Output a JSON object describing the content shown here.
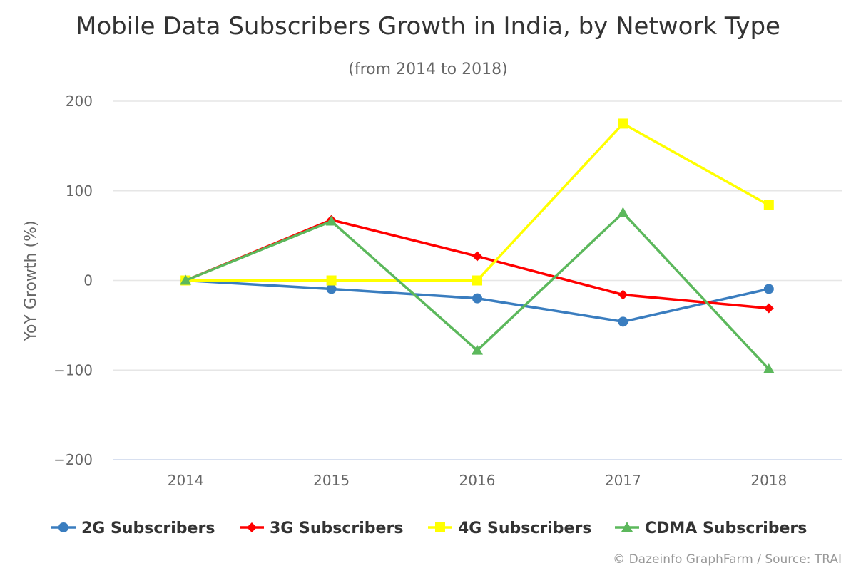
{
  "chart_data": {
    "type": "line",
    "title": "Mobile Data Subscribers Growth in India, by Network Type",
    "subtitle": "(from 2014 to 2018)",
    "xlabel": "",
    "ylabel": "YoY Growth (%)",
    "categories": [
      "2014",
      "2015",
      "2016",
      "2017",
      "2018"
    ],
    "ylim": [
      -200,
      200
    ],
    "yticks": [
      200,
      100,
      0,
      -100,
      -200
    ],
    "ytick_labels": [
      "200",
      "100",
      "0",
      "−100",
      "−200"
    ],
    "grid": true,
    "legend_position": "bottom",
    "series": [
      {
        "name": "2G Subscribers",
        "color": "#3a7dbf",
        "marker": "circle",
        "values": [
          0,
          -9.5,
          -20,
          -46,
          -9.5
        ]
      },
      {
        "name": "3G Subscribers",
        "color": "#ff0000",
        "marker": "diamond",
        "values": [
          0,
          67.5,
          27,
          -16,
          -31
        ]
      },
      {
        "name": "4G Subscribers",
        "color": "#ffff00",
        "marker": "square",
        "values": [
          0,
          0,
          0,
          175,
          84
        ]
      },
      {
        "name": "CDMA Subscribers",
        "color": "#5cb85c",
        "marker": "triangle",
        "values": [
          0,
          66,
          -78,
          75.5,
          -99
        ]
      }
    ],
    "credits": "© Dazeinfo GraphFarm / Source: TRAI"
  }
}
